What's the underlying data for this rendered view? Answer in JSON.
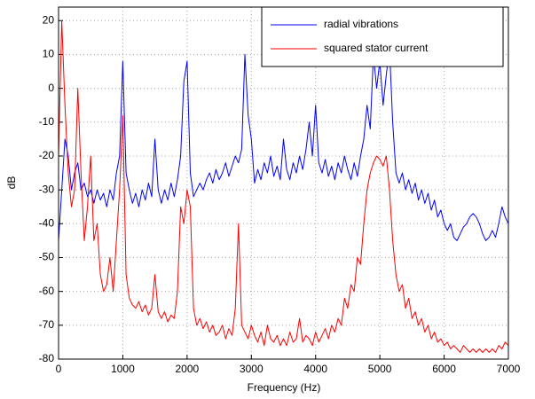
{
  "chart_data": {
    "type": "line",
    "xlabel": "Frequency (Hz)",
    "ylabel": "dB",
    "x": [
      0,
      50,
      100,
      150,
      200,
      250,
      300,
      350,
      400,
      450,
      500,
      550,
      600,
      650,
      700,
      750,
      800,
      850,
      900,
      950,
      1000,
      1050,
      1100,
      1150,
      1200,
      1250,
      1300,
      1350,
      1400,
      1450,
      1500,
      1550,
      1600,
      1650,
      1700,
      1750,
      1800,
      1850,
      1900,
      1950,
      2000,
      2050,
      2100,
      2150,
      2200,
      2250,
      2300,
      2350,
      2400,
      2450,
      2500,
      2550,
      2600,
      2650,
      2700,
      2750,
      2800,
      2850,
      2900,
      2950,
      3000,
      3050,
      3100,
      3150,
      3200,
      3250,
      3300,
      3350,
      3400,
      3450,
      3500,
      3550,
      3600,
      3650,
      3700,
      3750,
      3800,
      3850,
      3900,
      3950,
      4000,
      4050,
      4100,
      4150,
      4200,
      4250,
      4300,
      4350,
      4400,
      4450,
      4500,
      4550,
      4600,
      4650,
      4700,
      4750,
      4800,
      4850,
      4900,
      4950,
      5000,
      5050,
      5100,
      5150,
      5200,
      5250,
      5300,
      5350,
      5400,
      5450,
      5500,
      5550,
      5600,
      5650,
      5700,
      5750,
      5800,
      5850,
      5900,
      5950,
      6000,
      6050,
      6100,
      6150,
      6200,
      6250,
      6300,
      6350,
      6400,
      6450,
      6500,
      6550,
      6600,
      6650,
      6700,
      6750,
      6800,
      6850,
      6900,
      6950,
      7000
    ],
    "series": [
      {
        "name": "radial vibrations",
        "color": "#0000ff",
        "values": [
          -45,
          -30,
          -15,
          -20,
          -30,
          -25,
          -22,
          -30,
          -28,
          -32,
          -30,
          -34,
          -30,
          -33,
          -31,
          -35,
          -30,
          -33,
          -25,
          -20,
          8,
          -25,
          -30,
          -34,
          -31,
          -35,
          -30,
          -33,
          -28,
          -32,
          -15,
          -30,
          -34,
          -30,
          -33,
          -28,
          -32,
          -27,
          -20,
          2,
          8,
          -25,
          -32,
          -30,
          -28,
          -30,
          -27,
          -25,
          -28,
          -24,
          -27,
          -25,
          -22,
          -26,
          -23,
          -20,
          -22,
          -18,
          10,
          -8,
          -15,
          -28,
          -24,
          -27,
          -22,
          -25,
          -20,
          -26,
          -23,
          -27,
          -15,
          -24,
          -27,
          -22,
          -25,
          -20,
          -24,
          -18,
          -10,
          -20,
          -5,
          -22,
          -25,
          -21,
          -26,
          -23,
          -27,
          -22,
          -25,
          -20,
          -24,
          -27,
          -22,
          -26,
          -20,
          -15,
          -5,
          -12,
          10,
          0,
          8,
          -5,
          4,
          12,
          -10,
          -25,
          -28,
          -25,
          -30,
          -27,
          -31,
          -28,
          -33,
          -30,
          -34,
          -31,
          -36,
          -33,
          -38,
          -36,
          -40,
          -42,
          -40,
          -44,
          -45,
          -43,
          -41,
          -40,
          -38,
          -37,
          -38,
          -40,
          -43,
          -45,
          -44,
          -42,
          -44,
          -40,
          -35,
          -38,
          -40
        ]
      },
      {
        "name": "squared stator current",
        "color": "#ff0000",
        "values": [
          -20,
          20,
          -5,
          -25,
          -35,
          -30,
          0,
          -25,
          -45,
          -35,
          -20,
          -45,
          -40,
          -55,
          -60,
          -58,
          -50,
          -60,
          -45,
          -30,
          -8,
          -55,
          -62,
          -64,
          -65,
          -63,
          -66,
          -64,
          -67,
          -65,
          -55,
          -66,
          -68,
          -66,
          -69,
          -67,
          -68,
          -60,
          -35,
          -40,
          -30,
          -35,
          -65,
          -70,
          -68,
          -71,
          -69,
          -72,
          -70,
          -73,
          -72,
          -70,
          -74,
          -71,
          -73,
          -65,
          -40,
          -70,
          -72,
          -74,
          -70,
          -73,
          -75,
          -72,
          -76,
          -70,
          -74,
          -75,
          -73,
          -76,
          -74,
          -76,
          -72,
          -75,
          -74,
          -68,
          -75,
          -73,
          -74,
          -76,
          -72,
          -75,
          -73,
          -71,
          -74,
          -70,
          -72,
          -68,
          -70,
          -62,
          -65,
          -58,
          -60,
          -50,
          -52,
          -40,
          -30,
          -25,
          -22,
          -20,
          -21,
          -23,
          -20,
          -30,
          -45,
          -55,
          -60,
          -58,
          -65,
          -62,
          -68,
          -66,
          -70,
          -68,
          -72,
          -70,
          -74,
          -72,
          -75,
          -74,
          -76,
          -75,
          -77,
          -76,
          -77,
          -78,
          -76,
          -77,
          -78,
          -77,
          -78,
          -77,
          -78,
          -77,
          -78,
          -77,
          -78,
          -76,
          -77,
          -75,
          -76
        ]
      }
    ],
    "xlim": [
      0,
      7000
    ],
    "xticks": [
      0,
      1000,
      2000,
      3000,
      4000,
      5000,
      6000,
      7000
    ],
    "ylim": [
      -80,
      24
    ],
    "yticks": [
      -80,
      -70,
      -60,
      -50,
      -40,
      -30,
      -20,
      -10,
      0,
      10,
      20
    ],
    "grid": true,
    "legend": "upper right"
  }
}
